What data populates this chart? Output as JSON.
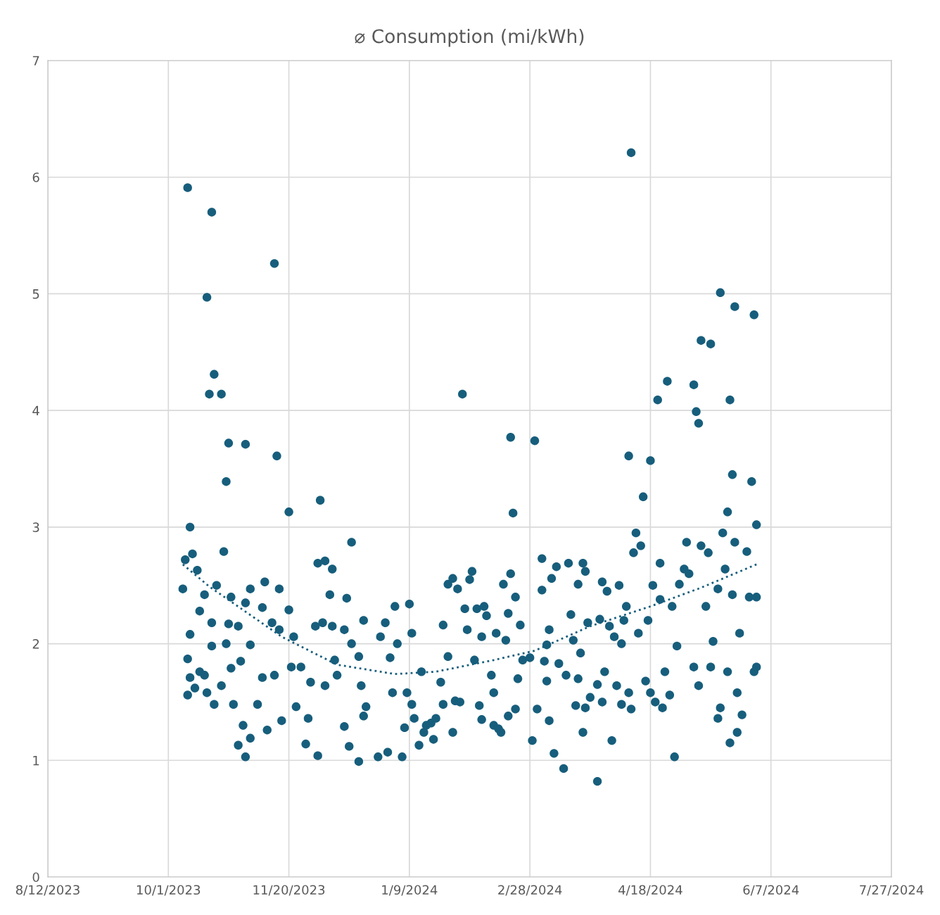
{
  "chart_data": {
    "type": "scatter",
    "title": "⌀ Consumption (mi/kWh)",
    "xlim": [
      "2023-08-12",
      "2024-07-27"
    ],
    "xticks": [
      {
        "value": "2023-08-12",
        "label": "8/12/2023"
      },
      {
        "value": "2023-10-01",
        "label": "10/1/2023"
      },
      {
        "value": "2023-11-20",
        "label": "11/20/2023"
      },
      {
        "value": "2024-01-09",
        "label": "1/9/2024"
      },
      {
        "value": "2024-02-28",
        "label": "2/28/2024"
      },
      {
        "value": "2024-04-18",
        "label": "4/18/2024"
      },
      {
        "value": "2024-06-07",
        "label": "6/7/2024"
      },
      {
        "value": "2024-07-27",
        "label": "7/27/2024"
      }
    ],
    "ylim": [
      0,
      7
    ],
    "yticks": [
      0,
      1,
      2,
      3,
      4,
      5,
      6,
      7
    ],
    "grid": true,
    "legend": false,
    "series": [
      {
        "color": "#175e7c",
        "marker": "circle",
        "x": [
          "2023-10-07",
          "2023-10-08",
          "2023-10-09",
          "2023-10-09",
          "2023-10-09",
          "2023-10-10",
          "2023-10-10",
          "2023-10-10",
          "2023-10-11",
          "2023-10-12",
          "2023-10-13",
          "2023-10-14",
          "2023-10-14",
          "2023-10-16",
          "2023-10-16",
          "2023-10-17",
          "2023-10-17",
          "2023-10-18",
          "2023-10-19",
          "2023-10-19",
          "2023-10-19",
          "2023-10-20",
          "2023-10-21",
          "2023-10-20",
          "2023-10-23",
          "2023-10-24",
          "2023-10-23",
          "2023-10-25",
          "2023-10-25",
          "2023-10-26",
          "2023-10-26",
          "2023-10-27",
          "2023-10-27",
          "2023-10-28",
          "2023-10-30",
          "2023-10-30",
          "2023-10-31",
          "2023-11-01",
          "2023-11-02",
          "2023-11-02",
          "2023-11-02",
          "2023-11-04",
          "2023-11-04",
          "2023-11-04",
          "2023-11-07",
          "2023-11-09",
          "2023-11-09",
          "2023-11-10",
          "2023-11-11",
          "2023-11-13",
          "2023-11-14",
          "2023-11-14",
          "2023-11-15",
          "2023-11-16",
          "2023-11-16",
          "2023-11-17",
          "2023-11-20",
          "2023-11-20",
          "2023-11-21",
          "2023-11-22",
          "2023-11-23",
          "2023-11-25",
          "2023-11-27",
          "2023-11-28",
          "2023-11-29",
          "2023-12-01",
          "2023-12-02",
          "2023-12-03",
          "2023-12-02",
          "2023-12-04",
          "2023-12-05",
          "2023-12-05",
          "2023-12-07",
          "2023-12-08",
          "2023-12-08",
          "2023-12-09",
          "2023-12-10",
          "2023-12-13",
          "2023-12-13",
          "2023-12-14",
          "2023-12-15",
          "2023-12-16",
          "2023-12-16",
          "2023-12-19",
          "2023-12-19",
          "2023-12-20",
          "2023-12-21",
          "2023-12-21",
          "2023-12-22",
          "2023-12-27",
          "2023-12-28",
          "2023-12-30",
          "2023-12-31",
          "2024-01-01",
          "2024-01-02",
          "2024-01-03",
          "2024-01-04",
          "2024-01-06",
          "2024-01-07",
          "2024-01-08",
          "2024-01-09",
          "2024-01-10",
          "2024-01-10",
          "2024-01-11",
          "2024-01-13",
          "2024-01-14",
          "2024-01-15",
          "2024-01-16",
          "2024-01-18",
          "2024-01-19",
          "2024-01-20",
          "2024-01-22",
          "2024-01-23",
          "2024-01-23",
          "2024-01-25",
          "2024-01-25",
          "2024-01-27",
          "2024-01-27",
          "2024-01-28",
          "2024-01-29",
          "2024-01-30",
          "2024-01-31",
          "2024-02-01",
          "2024-02-02",
          "2024-02-03",
          "2024-02-04",
          "2024-02-05",
          "2024-02-06",
          "2024-02-07",
          "2024-02-08",
          "2024-02-08",
          "2024-02-09",
          "2024-02-10",
          "2024-02-12",
          "2024-02-13",
          "2024-02-13",
          "2024-02-14",
          "2024-02-15",
          "2024-02-16",
          "2024-02-17",
          "2024-02-18",
          "2024-02-19",
          "2024-02-19",
          "2024-02-20",
          "2024-02-20",
          "2024-02-21",
          "2024-02-22",
          "2024-02-22",
          "2024-02-23",
          "2024-02-24",
          "2024-02-25",
          "2024-02-28",
          "2024-02-29",
          "2024-03-01",
          "2024-03-02",
          "2024-03-04",
          "2024-03-04",
          "2024-03-05",
          "2024-03-06",
          "2024-03-06",
          "2024-03-07",
          "2024-03-07",
          "2024-03-08",
          "2024-03-09",
          "2024-03-10",
          "2024-03-11",
          "2024-03-13",
          "2024-03-14",
          "2024-03-15",
          "2024-03-16",
          "2024-03-17",
          "2024-03-18",
          "2024-03-19",
          "2024-03-19",
          "2024-03-20",
          "2024-03-21",
          "2024-03-21",
          "2024-03-22",
          "2024-03-22",
          "2024-03-23",
          "2024-03-24",
          "2024-03-27",
          "2024-03-27",
          "2024-03-28",
          "2024-03-29",
          "2024-03-29",
          "2024-03-30",
          "2024-03-31",
          "2024-04-01",
          "2024-04-02",
          "2024-04-03",
          "2024-04-04",
          "2024-04-05",
          "2024-04-06",
          "2024-04-06",
          "2024-04-07",
          "2024-04-08",
          "2024-04-09",
          "2024-04-09",
          "2024-04-10",
          "2024-04-10",
          "2024-04-11",
          "2024-04-12",
          "2024-04-13",
          "2024-04-14",
          "2024-04-15",
          "2024-04-16",
          "2024-04-17",
          "2024-04-18",
          "2024-04-18",
          "2024-04-19",
          "2024-04-20",
          "2024-04-21",
          "2024-04-22",
          "2024-04-22",
          "2024-04-23",
          "2024-04-24",
          "2024-04-25",
          "2024-04-26",
          "2024-04-27",
          "2024-04-28",
          "2024-04-29",
          "2024-04-30",
          "2024-05-02",
          "2024-05-03",
          "2024-05-04",
          "2024-05-06",
          "2024-05-06",
          "2024-05-07",
          "2024-05-08",
          "2024-05-08",
          "2024-05-09",
          "2024-05-09",
          "2024-05-11",
          "2024-05-12",
          "2024-05-13",
          "2024-05-13",
          "2024-05-14",
          "2024-05-16",
          "2024-05-16",
          "2024-05-17",
          "2024-05-17",
          "2024-05-18",
          "2024-05-19",
          "2024-05-20",
          "2024-05-20",
          "2024-05-21",
          "2024-05-21",
          "2024-05-22",
          "2024-05-22",
          "2024-05-23",
          "2024-05-23",
          "2024-05-24",
          "2024-05-24",
          "2024-05-25",
          "2024-05-26",
          "2024-05-28",
          "2024-05-29",
          "2024-05-30",
          "2024-05-31",
          "2024-05-31",
          "2024-06-01",
          "2024-06-01",
          "2024-06-01"
        ],
        "values": [
          2.47,
          2.72,
          5.91,
          1.87,
          1.56,
          3.0,
          2.08,
          1.71,
          2.77,
          1.62,
          2.63,
          2.28,
          1.76,
          2.42,
          1.73,
          4.97,
          1.58,
          4.14,
          2.18,
          5.7,
          1.98,
          4.31,
          2.5,
          1.48,
          4.14,
          2.79,
          1.64,
          3.39,
          2.0,
          3.72,
          2.17,
          1.79,
          2.4,
          1.48,
          2.15,
          1.13,
          1.85,
          1.3,
          3.71,
          2.35,
          1.03,
          1.99,
          2.47,
          1.19,
          1.48,
          2.31,
          1.71,
          2.53,
          1.26,
          2.18,
          5.26,
          1.73,
          3.61,
          2.47,
          2.12,
          1.34,
          3.13,
          2.29,
          1.8,
          2.06,
          1.46,
          1.8,
          1.14,
          1.36,
          1.67,
          2.15,
          1.04,
          3.23,
          2.69,
          2.18,
          2.71,
          1.64,
          2.42,
          2.64,
          2.15,
          1.86,
          1.73,
          2.12,
          1.29,
          2.39,
          1.12,
          2.87,
          2.0,
          0.99,
          1.89,
          1.64,
          1.38,
          2.2,
          1.46,
          1.03,
          2.06,
          2.18,
          1.07,
          1.88,
          1.58,
          2.32,
          2.0,
          1.03,
          1.28,
          1.58,
          2.34,
          1.48,
          2.09,
          1.36,
          1.13,
          1.76,
          1.24,
          1.3,
          1.32,
          1.18,
          1.36,
          1.67,
          2.16,
          1.48,
          1.89,
          2.51,
          2.56,
          1.24,
          1.51,
          2.47,
          1.5,
          4.14,
          2.3,
          2.12,
          2.55,
          2.62,
          1.86,
          2.3,
          1.47,
          1.35,
          2.06,
          2.32,
          2.24,
          1.73,
          1.3,
          1.58,
          2.09,
          1.27,
          1.24,
          2.51,
          2.03,
          2.26,
          1.38,
          3.77,
          2.6,
          3.12,
          1.44,
          2.4,
          1.7,
          2.16,
          1.86,
          1.88,
          1.17,
          3.74,
          1.44,
          2.73,
          2.46,
          1.85,
          1.68,
          1.99,
          2.12,
          1.34,
          2.56,
          1.06,
          2.66,
          1.83,
          0.93,
          1.73,
          2.69,
          2.25,
          2.03,
          1.47,
          2.51,
          1.7,
          1.92,
          1.24,
          2.69,
          2.62,
          1.45,
          2.18,
          1.54,
          0.82,
          1.65,
          2.21,
          1.5,
          2.53,
          1.76,
          2.45,
          2.15,
          1.17,
          2.06,
          1.64,
          2.5,
          1.48,
          2.0,
          2.2,
          2.32,
          1.58,
          3.61,
          1.44,
          6.21,
          2.78,
          2.95,
          2.09,
          2.84,
          3.26,
          1.68,
          2.2,
          3.57,
          1.58,
          2.5,
          1.5,
          4.09,
          2.69,
          2.38,
          1.45,
          1.76,
          4.25,
          1.56,
          2.32,
          1.03,
          1.98,
          2.51,
          2.64,
          2.87,
          2.6,
          4.22,
          1.8,
          3.99,
          3.89,
          1.64,
          2.84,
          4.6,
          2.32,
          2.78,
          4.57,
          1.8,
          2.02,
          1.36,
          2.47,
          5.01,
          1.45,
          2.95,
          2.64,
          3.13,
          1.76,
          4.09,
          1.15,
          3.45,
          2.42,
          4.89,
          2.87,
          1.24,
          1.58,
          2.09,
          1.39,
          2.79,
          2.4,
          3.39,
          1.76,
          4.82,
          3.02,
          2.4,
          1.8
        ]
      },
      {
        "type": "line",
        "color": "#175e7c",
        "line_style": "dotted",
        "marker": "none",
        "x": [
          "2023-10-07",
          "2023-10-18",
          "2023-11-17",
          "2023-12-10",
          "2024-01-03",
          "2024-01-20",
          "2024-02-13",
          "2024-03-01",
          "2024-03-24",
          "2024-04-18",
          "2024-05-09",
          "2024-06-01"
        ],
        "values": [
          2.68,
          2.49,
          2.06,
          1.82,
          1.74,
          1.76,
          1.86,
          1.94,
          2.15,
          2.32,
          2.48,
          2.68
        ]
      }
    ]
  }
}
